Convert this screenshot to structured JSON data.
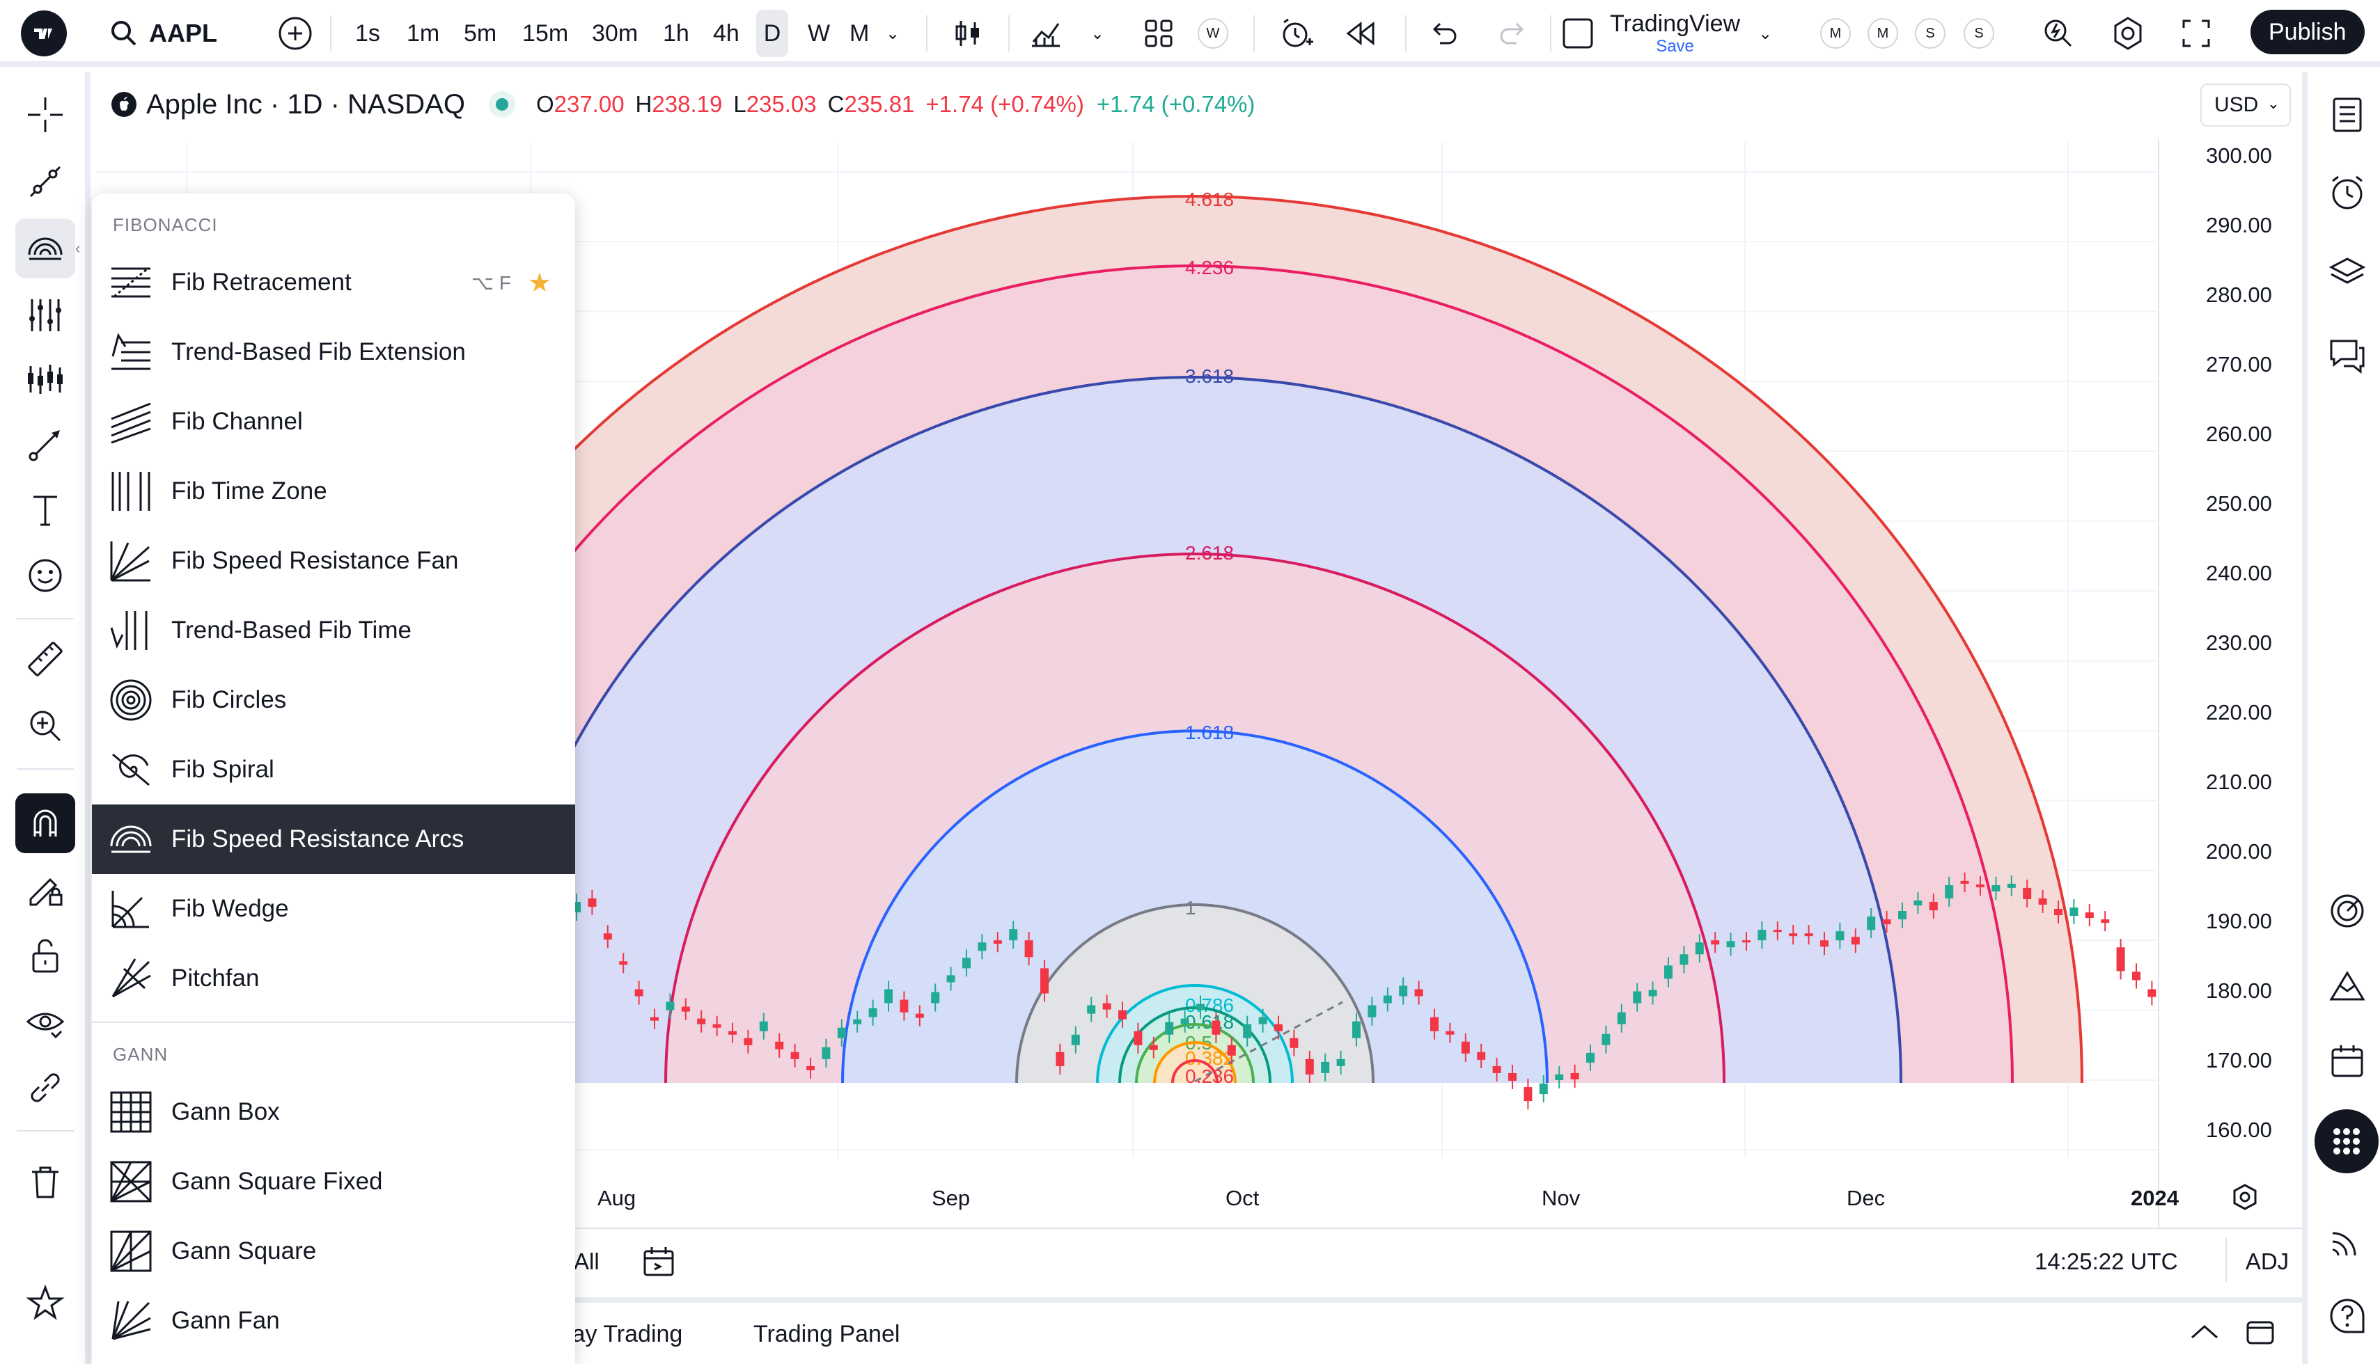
{
  "toolbar": {
    "symbol": "AAPL",
    "timeframes": [
      "1s",
      "1m",
      "5m",
      "15m",
      "30m",
      "1h",
      "4h",
      "D",
      "W",
      "M"
    ],
    "active_timeframe": "D",
    "indicator_badge": "W",
    "layout_name": "TradingView",
    "layout_status": "Save",
    "pills": [
      "M",
      "M",
      "S",
      "S"
    ],
    "publish_label": "Publish"
  },
  "legend": {
    "title": "Apple Inc · 1D · NASDAQ",
    "open_key": "O",
    "open": "237.00",
    "high_key": "H",
    "high": "238.19",
    "low_key": "L",
    "low": "235.03",
    "close_key": "C",
    "close": "235.81",
    "change_red": "+1.74 (+0.74%)",
    "change_green": "+1.74 (+0.74%)",
    "currency": "USD"
  },
  "menu": {
    "fib_section": "FIBONACCI",
    "fib_items": [
      {
        "label": "Fib Retracement",
        "hotkey": "⌥ F",
        "starred": true,
        "icon": "fib-retracement-icon"
      },
      {
        "label": "Trend-Based Fib Extension",
        "icon": "trend-fib-extension-icon"
      },
      {
        "label": "Fib Channel",
        "icon": "fib-channel-icon"
      },
      {
        "label": "Fib Time Zone",
        "icon": "fib-time-zone-icon"
      },
      {
        "label": "Fib Speed Resistance Fan",
        "icon": "fib-fan-icon"
      },
      {
        "label": "Trend-Based Fib Time",
        "icon": "trend-fib-time-icon"
      },
      {
        "label": "Fib Circles",
        "icon": "fib-circles-icon"
      },
      {
        "label": "Fib Spiral",
        "icon": "fib-spiral-icon"
      },
      {
        "label": "Fib Speed Resistance Arcs",
        "icon": "fib-arcs-icon",
        "selected": true
      },
      {
        "label": "Fib Wedge",
        "icon": "fib-wedge-icon"
      },
      {
        "label": "Pitchfan",
        "icon": "pitchfan-icon"
      }
    ],
    "gann_section": "GANN",
    "gann_items": [
      {
        "label": "Gann Box",
        "icon": "gann-box-icon"
      },
      {
        "label": "Gann Square Fixed",
        "icon": "gann-square-fixed-icon"
      },
      {
        "label": "Gann Square",
        "icon": "gann-square-icon"
      },
      {
        "label": "Gann Fan",
        "icon": "gann-fan-icon"
      }
    ]
  },
  "chart_data": {
    "type": "candlestick",
    "price_axis": [
      "300.00",
      "290.00",
      "280.00",
      "270.00",
      "260.00",
      "250.00",
      "240.00",
      "230.00",
      "220.00",
      "210.00",
      "200.00",
      "190.00",
      "180.00",
      "170.00",
      "160.00"
    ],
    "ylim": [
      155,
      305
    ],
    "time_axis": [
      "Aug",
      "Sep",
      "Oct",
      "Nov",
      "Dec",
      "2024"
    ],
    "fib_arcs": [
      {
        "level": "0.236",
        "color": "#f23645",
        "fill": "#fbe3c4"
      },
      {
        "level": "0.382",
        "color": "#ff9800",
        "fill": "#fbe3c4"
      },
      {
        "level": "0.5",
        "color": "#4caf50",
        "fill": "#d4efd0"
      },
      {
        "level": "0.618",
        "color": "#089981",
        "fill": "#cbeeea"
      },
      {
        "level": "0.786",
        "color": "#00bcd4",
        "fill": "#c6ecf2"
      },
      {
        "level": "1",
        "color": "#787b86",
        "fill": "#e3e3e6"
      },
      {
        "level": "1.618",
        "color": "#2962ff",
        "fill": "#d2defa"
      },
      {
        "level": "2.618",
        "color": "#d81b60",
        "fill": "#f3d3de"
      },
      {
        "level": "3.618",
        "color": "#3949ab",
        "fill": "#d6dcf7"
      },
      {
        "level": "4.236",
        "color": "#e91e63",
        "fill": "#f4d1dc"
      },
      {
        "level": "4.618",
        "color": "#e53935",
        "fill": "#f4d9d6"
      }
    ],
    "closes": [
      195.5,
      194.8,
      190.1,
      186.5,
      182.0,
      178.5,
      181.2,
      179.8,
      178.0,
      177.5,
      176.5,
      175.0,
      178.4,
      174.4,
      173.0,
      171.4,
      174.7,
      177.5,
      178.7,
      180.3,
      183.0,
      179.7,
      178.9,
      182.6,
      185.0,
      187.5,
      189.7,
      189.5,
      191.6,
      187.6,
      182.4,
      172.0,
      176.5,
      180.7,
      180.1,
      178.7,
      175.0,
      174.3,
      178.3,
      178.8,
      180.9,
      176.5,
      173.5,
      178.0,
      179.0,
      177.0,
      174.6,
      170.8,
      172.6,
      173.0,
      178.4,
      180.7,
      182.1,
      183.5,
      182.0,
      177.0,
      176.5,
      173.8,
      172.9,
      171.0,
      169.9,
      167.0,
      169.5,
      170.8,
      170.1,
      173.9,
      176.6,
      179.7,
      182.7,
      182.9,
      186.4,
      188.0,
      189.7,
      189.4,
      189.9,
      189.7,
      191.5,
      191.2,
      190.6,
      190.6,
      189.1,
      191.3,
      189.4,
      193.4,
      192.3,
      194.2,
      195.7,
      194.3,
      197.9,
      198.1,
      197.6,
      197.9,
      198.1,
      195.9,
      195.1,
      193.6,
      194.7,
      193.2,
      192.5,
      185.6,
      184.3,
      181.9
    ],
    "opens": [
      194.0,
      196.0,
      191.0,
      187.0,
      183.0,
      179.0,
      180.0,
      180.5,
      178.8,
      178.0,
      177.0,
      176.0,
      177.0,
      175.5,
      174.0,
      172.0,
      173.0,
      176.0,
      178.0,
      179.0,
      181.0,
      181.5,
      179.5,
      181.0,
      184.0,
      186.0,
      188.5,
      190.0,
      190.0,
      190.0,
      186.0,
      174.0,
      175.0,
      179.5,
      181.0,
      180.0,
      177.0,
      175.0,
      176.5,
      178.0,
      180.0,
      178.5,
      175.0,
      176.0,
      178.0,
      178.0,
      176.0,
      173.0,
      171.0,
      172.0,
      176.0,
      179.0,
      181.0,
      182.0,
      183.0,
      179.0,
      177.0,
      175.5,
      174.0,
      172.0,
      171.0,
      169.0,
      168.0,
      170.0,
      171.0,
      172.5,
      175.0,
      178.0,
      181.0,
      182.0,
      184.5,
      186.5,
      188.0,
      190.0,
      189.0,
      190.0,
      190.0,
      191.5,
      191.0,
      191.0,
      190.0,
      190.0,
      190.5,
      191.5,
      193.0,
      193.0,
      195.0,
      195.5,
      196.0,
      198.5,
      198.0,
      197.0,
      197.5,
      197.5,
      196.0,
      194.5,
      193.5,
      194.0,
      193.0,
      189.0,
      185.5,
      183.0
    ]
  },
  "bottom": {
    "range_all": "All",
    "clock": "14:25:22 UTC",
    "adj": "ADJ",
    "tab1": "lay Trading",
    "tab2": "Trading Panel"
  }
}
